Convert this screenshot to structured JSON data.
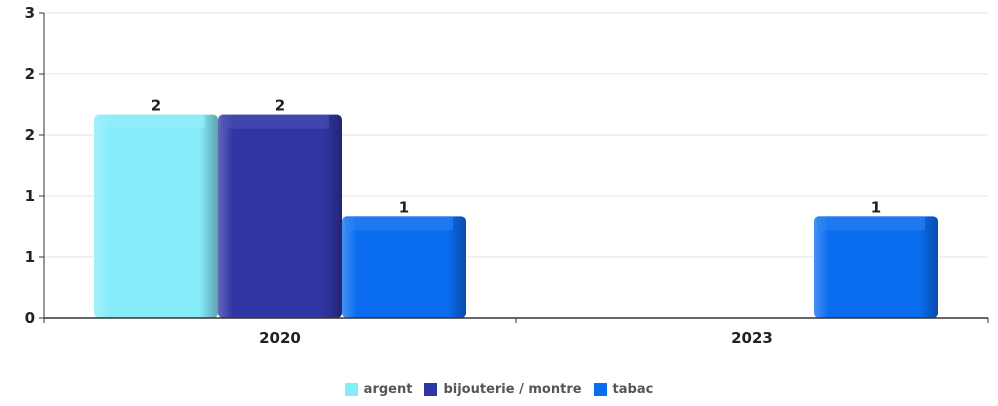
{
  "chart_data": {
    "type": "bar",
    "title": "",
    "xlabel": "",
    "ylabel": "",
    "categories": [
      "2020",
      "2023"
    ],
    "ylim": [
      0,
      3
    ],
    "y_tick_labels": [
      "0",
      "1",
      "1",
      "2",
      "2",
      "3"
    ],
    "grid": true,
    "legend_position": "bottom",
    "series": [
      {
        "name": "argent",
        "color": "#86ECFA",
        "values": [
          2,
          0
        ]
      },
      {
        "name": "bijouterie / montre",
        "color": "#3035A4",
        "values": [
          2,
          0
        ]
      },
      {
        "name": "tabac",
        "color": "#0A6DF0",
        "values": [
          1,
          1
        ]
      }
    ],
    "data_labels": [
      {
        "series": 0,
        "category": 0,
        "text": "2"
      },
      {
        "series": 1,
        "category": 0,
        "text": "2"
      },
      {
        "series": 2,
        "category": 0,
        "text": "1"
      },
      {
        "series": 2,
        "category": 1,
        "text": "1"
      }
    ]
  }
}
